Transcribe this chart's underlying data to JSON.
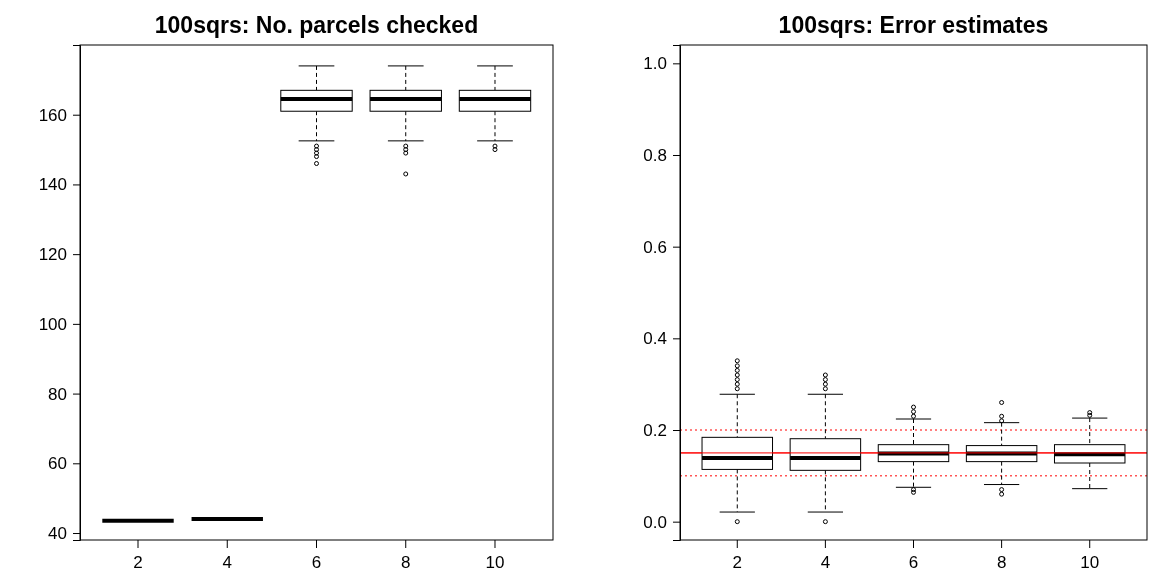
{
  "chart_data": [
    {
      "type": "box",
      "title": "100sqrs: No. parcels checked",
      "categories": [
        "2",
        "4",
        "6",
        "8",
        "10"
      ],
      "ylim": [
        38,
        180
      ],
      "yticks": [
        40,
        60,
        80,
        100,
        120,
        140,
        160
      ],
      "boxes": [
        {
          "low": 43.5,
          "q1": 43.5,
          "median": 43.5,
          "q3": 43.5,
          "high": 43.5
        },
        {
          "low": 44,
          "q1": 44,
          "median": 44,
          "q3": 44,
          "high": 44
        },
        {
          "low": 152.5,
          "q1": 161,
          "median": 164.5,
          "q3": 167,
          "high": 174,
          "outliers": [
            151,
            150,
            149,
            148,
            146
          ]
        },
        {
          "low": 152.5,
          "q1": 161,
          "median": 164.5,
          "q3": 167,
          "high": 174,
          "outliers": [
            151,
            150,
            149,
            143
          ]
        },
        {
          "low": 152.5,
          "q1": 161,
          "median": 164.5,
          "q3": 167,
          "high": 174,
          "outliers": [
            151,
            150
          ]
        }
      ]
    },
    {
      "type": "box",
      "title": "100sqrs: Error estimates",
      "categories": [
        "2",
        "4",
        "6",
        "8",
        "10"
      ],
      "ylim": [
        -0.04,
        1.04
      ],
      "yticks": [
        {
          "value": 0,
          "label": "0.0"
        },
        0.2,
        0.4,
        0.6,
        0.8,
        {
          "value": 1,
          "label": "1.0"
        }
      ],
      "boxes": [
        {
          "low": 0.021,
          "q1": 0.114,
          "median": 0.139,
          "q3": 0.184,
          "high": 0.278,
          "outliers": [
            0.29,
            0.3,
            0.31,
            0.32,
            0.33,
            0.34,
            0.351,
            0
          ]
        },
        {
          "low": 0.021,
          "q1": 0.112,
          "median": 0.139,
          "q3": 0.181,
          "high": 0.278,
          "outliers": [
            0.29,
            0.3,
            0.31,
            0.32,
            0
          ]
        },
        {
          "low": 0.075,
          "q1": 0.131,
          "median": 0.149,
          "q3": 0.168,
          "high": 0.224,
          "outliers": [
            0.23,
            0.24,
            0.25,
            0.07,
            0.064
          ]
        },
        {
          "low": 0.081,
          "q1": 0.131,
          "median": 0.149,
          "q3": 0.166,
          "high": 0.216,
          "outliers": [
            0.22,
            0.23,
            0.26,
            0.07,
            0.06
          ]
        },
        {
          "low": 0.072,
          "q1": 0.128,
          "median": 0.147,
          "q3": 0.168,
          "high": 0.226,
          "outliers": [
            0.232,
            0.238
          ]
        }
      ],
      "ref_lines": [
        {
          "axis": "y",
          "value": 0.15,
          "color": "#ff0000",
          "line_style": "solid"
        },
        {
          "axis": "y",
          "value": 0.1,
          "color": "#ff0000",
          "line_style": "dotted"
        },
        {
          "axis": "y",
          "value": 0.2,
          "color": "#ff0000",
          "line_style": "dotted"
        }
      ]
    }
  ]
}
